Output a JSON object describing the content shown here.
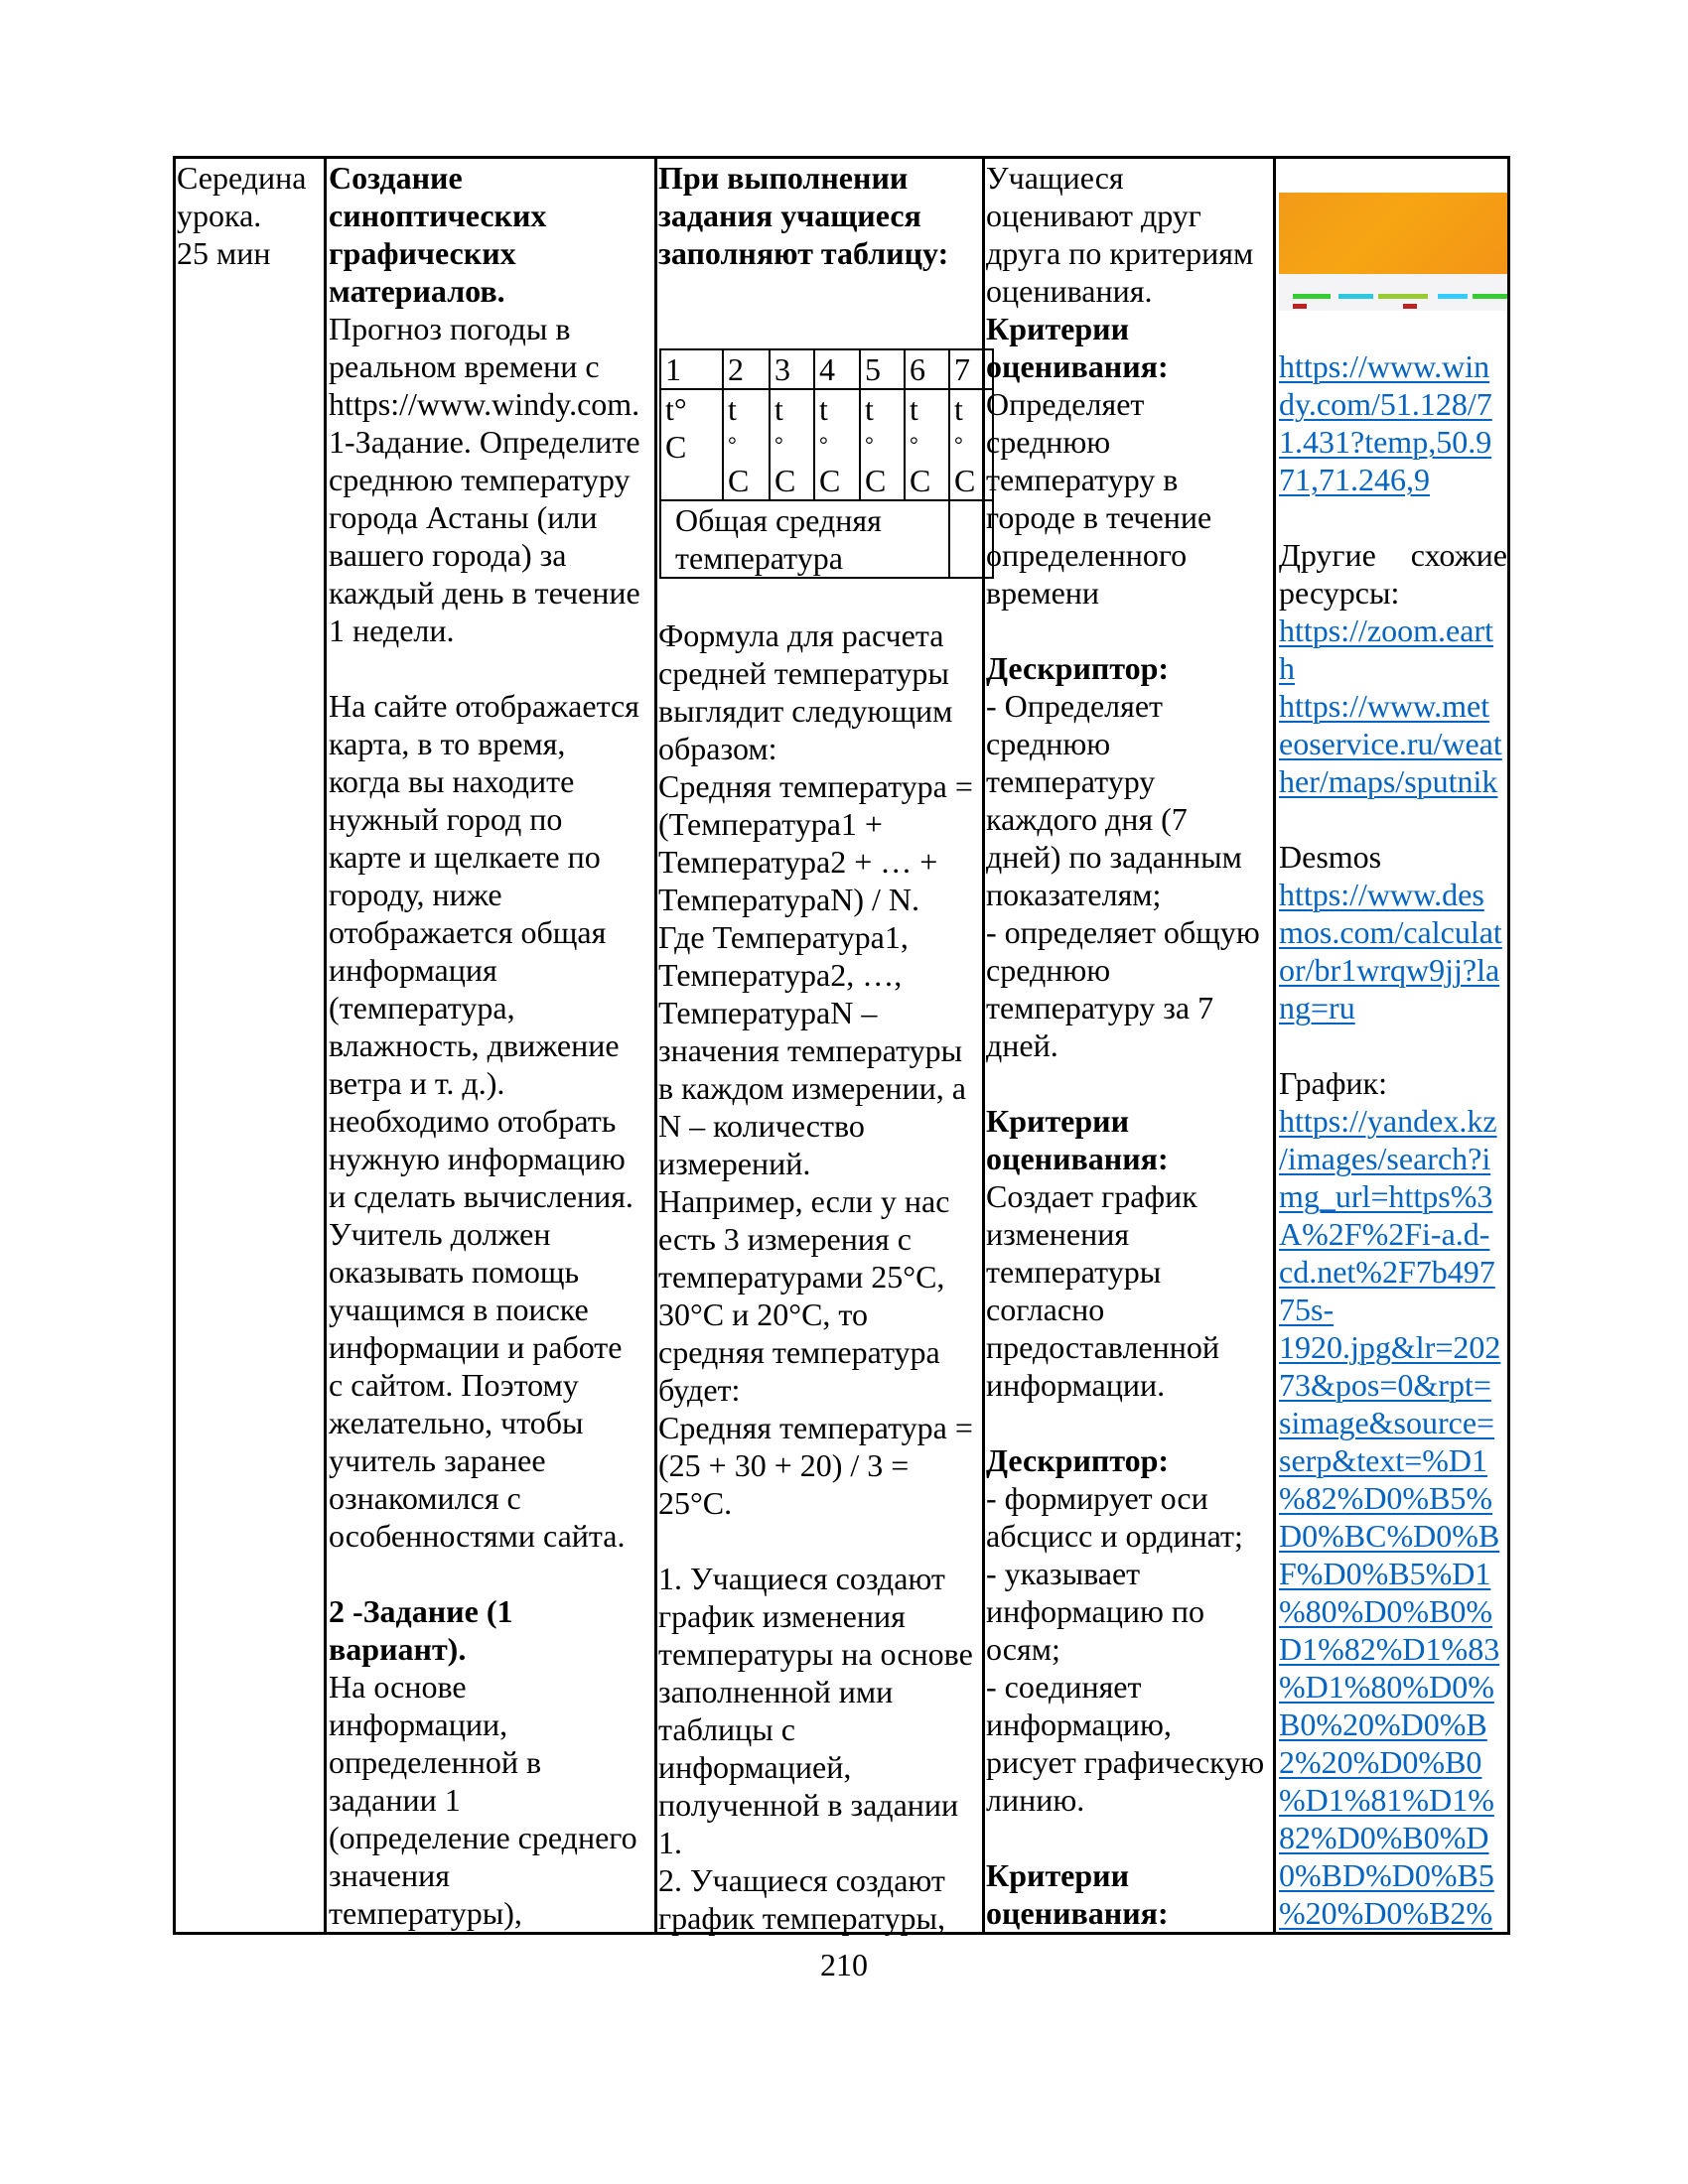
{
  "columns": [
    {
      "name": "stage",
      "lines": [
        {
          "t": "Середина"
        },
        {
          "t": "урока."
        },
        {
          "t": "25 мин"
        }
      ]
    },
    {
      "name": "activity",
      "lines": [
        {
          "t": "Создание",
          "k": "b"
        },
        {
          "t": "синоптических",
          "k": "b"
        },
        {
          "t": "графических",
          "k": "b"
        },
        {
          "t": "материалов.",
          "k": "b"
        },
        {
          "t": "Прогноз погоды в"
        },
        {
          "t": "реальном времени с"
        },
        {
          "t": "https://www.windy.com."
        },
        {
          "t": "1-Задание. Определите"
        },
        {
          "t": "среднюю температуру"
        },
        {
          "t": "города Астаны (или"
        },
        {
          "t": "вашего города) за"
        },
        {
          "t": "каждый день в течение"
        },
        {
          "t": "1 недели."
        },
        {
          "t": ""
        },
        {
          "t": "На сайте отображается"
        },
        {
          "t": "карта, в то время,"
        },
        {
          "t": "когда вы находите"
        },
        {
          "t": "нужный город по"
        },
        {
          "t": "карте и щелкаете по"
        },
        {
          "t": "городу, ниже"
        },
        {
          "t": "отображается общая"
        },
        {
          "t": "информация"
        },
        {
          "t": "(температура,"
        },
        {
          "t": "влажность, движение"
        },
        {
          "t": "ветра и т. д.)."
        },
        {
          "t": "необходимо отобрать"
        },
        {
          "t": "нужную информацию"
        },
        {
          "t": "и сделать вычисления."
        },
        {
          "t": "Учитель должен"
        },
        {
          "t": "оказывать помощь"
        },
        {
          "t": "учащимся в поиске"
        },
        {
          "t": "информации и работе"
        },
        {
          "t": "с сайтом. Поэтому"
        },
        {
          "t": "желательно, чтобы"
        },
        {
          "t": "учитель заранее"
        },
        {
          "t": "ознакомился с"
        },
        {
          "t": "особенностями сайта."
        },
        {
          "t": ""
        },
        {
          "t": "2 -Задание (1",
          "k": "b"
        },
        {
          "t": "вариант).",
          "k": "b"
        },
        {
          "t": "На основе"
        },
        {
          "t": "информации,"
        },
        {
          "t": "определенной в"
        },
        {
          "t": "задании 1"
        },
        {
          "t": "(определение среднего"
        },
        {
          "t": "значения"
        },
        {
          "t": "температуры),"
        }
      ]
    },
    {
      "name": "student-work",
      "lines": [
        {
          "t": "При выполнении",
          "k": "b"
        },
        {
          "t": "задания учащиеся",
          "k": "b"
        },
        {
          "t": "заполняют таблицу:",
          "k": "b"
        }
      ],
      "after_table": [
        {
          "t": "Формула для расчета"
        },
        {
          "t": "средней температуры"
        },
        {
          "t": "выглядит следующим"
        },
        {
          "t": "образом:"
        },
        {
          "t": "Средняя температура ="
        },
        {
          "t": "(Температура1 +"
        },
        {
          "t": "Температура2 + … +"
        },
        {
          "t": "ТемператураN) / N."
        },
        {
          "t": "Где Температура1,"
        },
        {
          "t": "Температура2, …,"
        },
        {
          "t": "ТемператураN –"
        },
        {
          "t": "значения температуры"
        },
        {
          "t": "в каждом измерении, а"
        },
        {
          "t": "N – количество"
        },
        {
          "t": "измерений."
        },
        {
          "t": "Например, если у нас"
        },
        {
          "t": "есть 3 измерения с"
        },
        {
          "t": "температурами 25°C,"
        },
        {
          "t": "30°C и 20°C, то"
        },
        {
          "t": "средняя температура"
        },
        {
          "t": "будет:"
        },
        {
          "t": "Средняя температура ="
        },
        {
          "t": "(25 + 30 + 20) / 3 ="
        },
        {
          "t": "25°C."
        },
        {
          "t": ""
        },
        {
          "t": "1. Учащиеся создают"
        },
        {
          "t": "график изменения"
        },
        {
          "t": "температуры на основе"
        },
        {
          "t": "заполненной ими"
        },
        {
          "t": "таблицы с"
        },
        {
          "t": "информацией,"
        },
        {
          "t": "полученной в задании"
        },
        {
          "t": "1."
        },
        {
          "t": "2. Учащиеся создают"
        },
        {
          "t": "график температуры,"
        }
      ]
    },
    {
      "name": "assessment",
      "lines": [
        {
          "t": "Учащиеся"
        },
        {
          "t": "оценивают друг"
        },
        {
          "t": "друга по критериям"
        },
        {
          "t": "оценивания."
        },
        {
          "t": "Критерии",
          "k": "b"
        },
        {
          "t": "оценивания:",
          "k": "b"
        },
        {
          "t": "Определяет"
        },
        {
          "t": "среднюю"
        },
        {
          "t": "температуру в"
        },
        {
          "t": "городе в течение"
        },
        {
          "t": "определенного"
        },
        {
          "t": "времени"
        },
        {
          "t": ""
        },
        {
          "t": "Дескриптор:",
          "k": "b"
        },
        {
          "t": "- Определяет"
        },
        {
          "t": "среднюю"
        },
        {
          "t": "температуру"
        },
        {
          "t": "каждого дня (7"
        },
        {
          "t": "дней) по заданным"
        },
        {
          "t": "показателям;"
        },
        {
          "t": "- определяет общую"
        },
        {
          "t": "среднюю"
        },
        {
          "t": "температуру за 7"
        },
        {
          "t": "дней."
        },
        {
          "t": ""
        },
        {
          "t": "Критерии",
          "k": "b"
        },
        {
          "t": "оценивания:",
          "k": "b"
        },
        {
          "t": "Создает график"
        },
        {
          "t": "изменения"
        },
        {
          "t": "температуры"
        },
        {
          "t": "согласно"
        },
        {
          "t": "предоставленной"
        },
        {
          "t": "информации."
        },
        {
          "t": ""
        },
        {
          "t": "Дескриптор:",
          "k": "b"
        },
        {
          "t": "- формирует оси"
        },
        {
          "t": "абсцисс и ординат;"
        },
        {
          "t": "- указывает"
        },
        {
          "t": "информацию по"
        },
        {
          "t": "осям;"
        },
        {
          "t": "- соединяет"
        },
        {
          "t": "информацию,"
        },
        {
          "t": "рисует графическую"
        },
        {
          "t": "линию."
        },
        {
          "t": ""
        },
        {
          "t": "Критерии",
          "k": "b"
        },
        {
          "t": "оценивания:",
          "k": "b"
        }
      ]
    },
    {
      "name": "resources",
      "lines": [
        {
          "t": ""
        },
        {
          "t": ""
        },
        {
          "t": ""
        },
        {
          "t": ""
        },
        {
          "t": ""
        },
        {
          "t": "https://www.win",
          "k": "a"
        },
        {
          "t": "dy.com/51.128/7",
          "k": "a"
        },
        {
          "t": "1.431?temp,50.9",
          "k": "a"
        },
        {
          "t": "71,71.246,9",
          "k": "a"
        },
        {
          "t": ""
        },
        {
          "t": "Другие схожие",
          "k": "j"
        },
        {
          "t": "ресурсы:"
        },
        {
          "t": "https://zoom.eart",
          "k": "a"
        },
        {
          "t": "h",
          "k": "a"
        },
        {
          "t": "https://www.met",
          "k": "a"
        },
        {
          "t": "eoservice.ru/weat",
          "k": "a"
        },
        {
          "t": "her/maps/sputnik",
          "k": "a"
        },
        {
          "t": ""
        },
        {
          "t": "Desmos"
        },
        {
          "t": "https://www.des",
          "k": "a"
        },
        {
          "t": "mos.com/calculat",
          "k": "a"
        },
        {
          "t": "or/br1wrqw9jj?la",
          "k": "a"
        },
        {
          "t": "ng=ru",
          "k": "a"
        },
        {
          "t": ""
        },
        {
          "t": "График:"
        },
        {
          "t": "https://yandex.kz",
          "k": "a"
        },
        {
          "t": "/images/search?i",
          "k": "a"
        },
        {
          "t": "mg_url=https%3",
          "k": "a"
        },
        {
          "t": "A%2F%2Fi-a.d-",
          "k": "a"
        },
        {
          "t": "cd.net%2F7b497",
          "k": "a"
        },
        {
          "t": "75s-",
          "k": "a"
        },
        {
          "t": "1920.jpg&lr=202",
          "k": "a"
        },
        {
          "t": "73&pos=0&rpt=",
          "k": "a"
        },
        {
          "t": "simage&source=",
          "k": "a"
        },
        {
          "t": "serp&text=%D1",
          "k": "a"
        },
        {
          "t": "%82%D0%B5%",
          "k": "a"
        },
        {
          "t": "D0%BC%D0%B",
          "k": "a"
        },
        {
          "t": "F%D0%B5%D1",
          "k": "a"
        },
        {
          "t": "%80%D0%B0%",
          "k": "a"
        },
        {
          "t": "D1%82%D1%83",
          "k": "a"
        },
        {
          "t": "%D1%80%D0%",
          "k": "a"
        },
        {
          "t": "B0%20%D0%B",
          "k": "a"
        },
        {
          "t": "2%20%D0%B0",
          "k": "a"
        },
        {
          "t": "%D1%81%D1%",
          "k": "a"
        },
        {
          "t": "82%D0%B0%D",
          "k": "a"
        },
        {
          "t": "0%BD%D0%B5",
          "k": "a"
        },
        {
          "t": "%20%D0%B2%",
          "k": "a"
        }
      ]
    }
  ],
  "inner_table": {
    "header": [
      "1",
      "2",
      "3",
      "4",
      "5",
      "6",
      "7"
    ],
    "first_cell": [
      "t°",
      "C"
    ],
    "unit_t": "t",
    "unit_deg": "°",
    "unit_c": "C",
    "total_label": [
      "Общая средняя",
      "температура"
    ]
  },
  "screenshot_thumbnail": "windy-map-icon",
  "link_color": "#0563c1",
  "page_number": "210"
}
